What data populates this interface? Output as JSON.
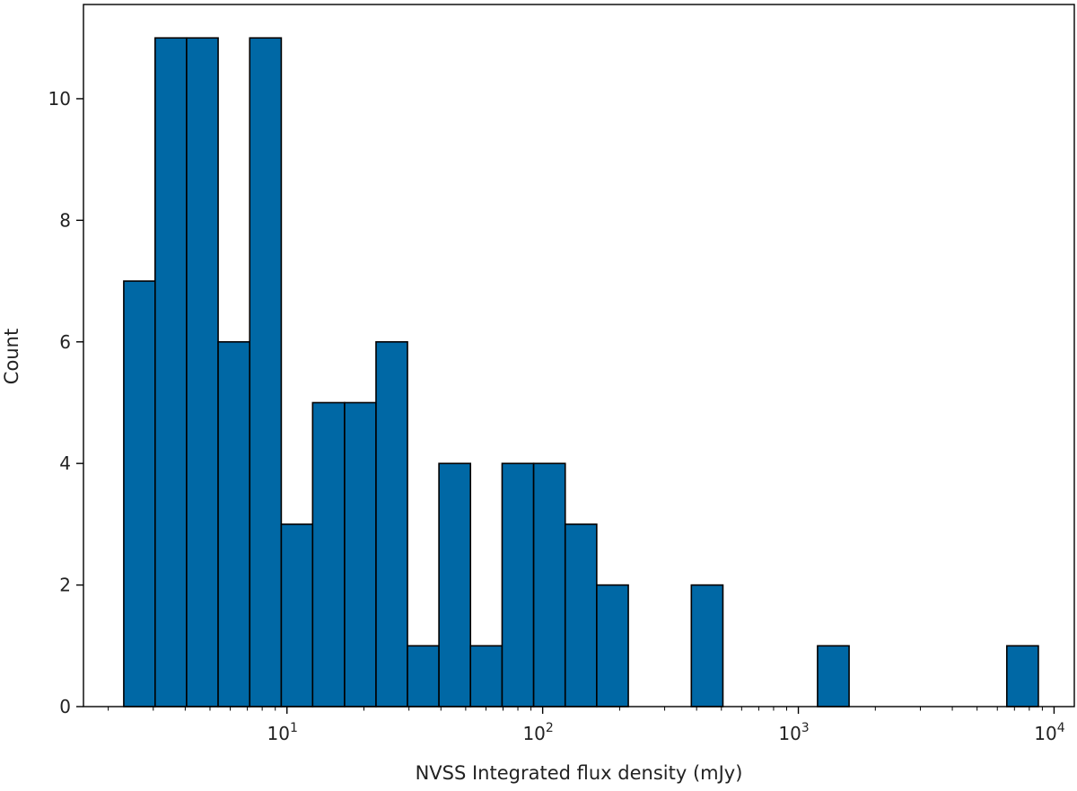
{
  "chart_data": {
    "type": "bar",
    "title": "",
    "xlabel": "NVSS Integrated flux density (mJy)",
    "ylabel": "Count",
    "x_scale": "log",
    "xlim": [
      1.6,
      12000
    ],
    "ylim": [
      0,
      11.55
    ],
    "x_ticks": [
      {
        "value": 10,
        "base": "10",
        "exp": "1"
      },
      {
        "value": 100,
        "base": "10",
        "exp": "2"
      },
      {
        "value": 1000,
        "base": "10",
        "exp": "3"
      },
      {
        "value": 10000,
        "base": "10",
        "exp": "4"
      }
    ],
    "y_ticks": [
      0,
      2,
      4,
      6,
      8,
      10
    ],
    "bin_edges": [
      2.3,
      3.05,
      4.05,
      5.38,
      7.15,
      9.5,
      12.6,
      16.8,
      22.3,
      29.6,
      39.3,
      52.2,
      69.4,
      92.2,
      122.5,
      162.7,
      216.2,
      287.2,
      381.5,
      506.9,
      673.4,
      894.6,
      1188.5,
      1579,
      2097.6,
      2786.7,
      3702.2,
      4918.4,
      6534.1,
      8680.7
    ],
    "counts": [
      7,
      11,
      11,
      6,
      11,
      3,
      5,
      5,
      6,
      1,
      4,
      1,
      4,
      4,
      3,
      2,
      0,
      0,
      2,
      0,
      0,
      0,
      1,
      0,
      0,
      0,
      0,
      0,
      1
    ],
    "colors": {
      "bar_fill": "#0068a5",
      "bar_edge": "#000000"
    }
  }
}
